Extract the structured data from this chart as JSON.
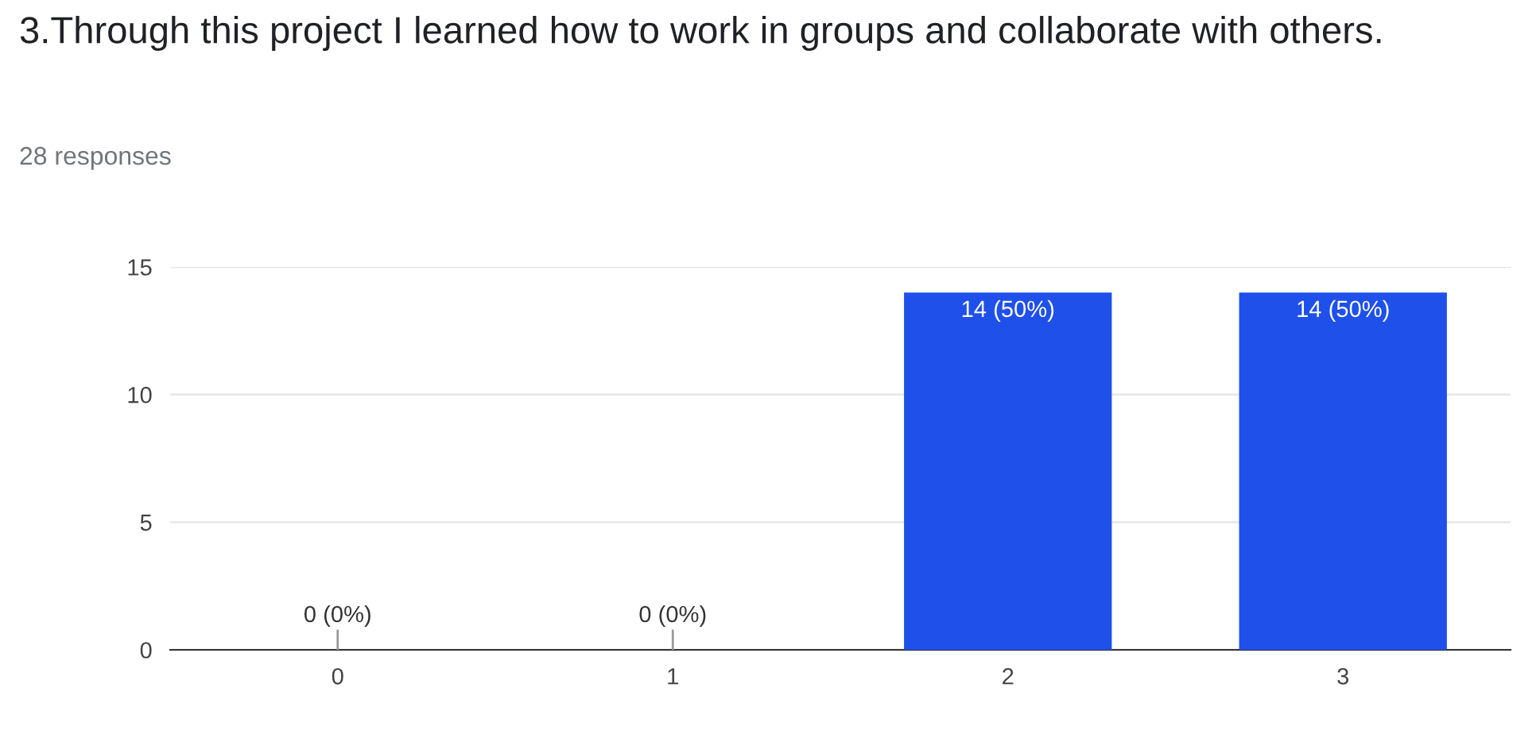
{
  "chart_data": {
    "type": "bar",
    "title": "3.Through this project I learned how to work in groups and collaborate with others.",
    "subtitle": "28 responses",
    "categories": [
      "0",
      "1",
      "2",
      "3"
    ],
    "values": [
      0,
      0,
      14,
      14
    ],
    "color": "#1f50ea",
    "value_labels": [
      "0 (0%)",
      "0 (0%)",
      "14 (50%)",
      "14 (50%)"
    ],
    "ylim": [
      0,
      15
    ],
    "yticks": [
      0,
      5,
      10,
      15
    ],
    "grid": "y"
  }
}
